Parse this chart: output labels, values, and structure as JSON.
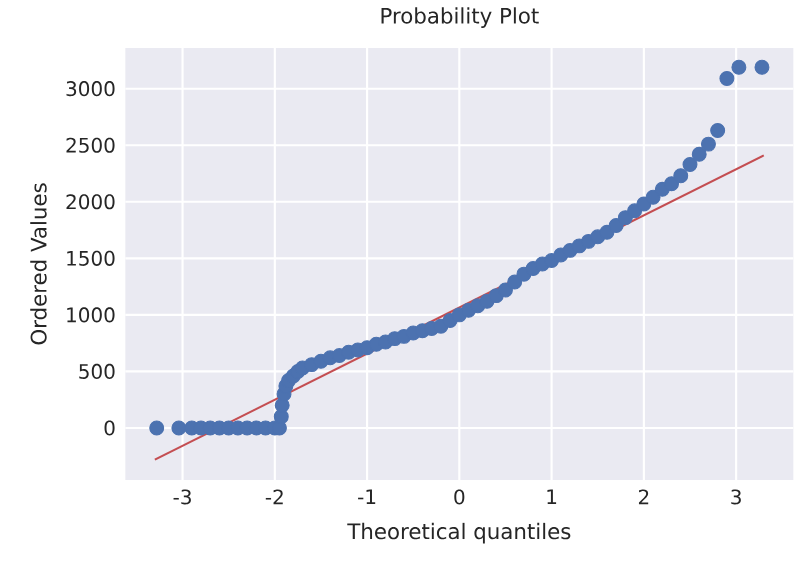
{
  "chart_data": {
    "type": "scatter",
    "title": "Probability Plot",
    "xlabel": "Theoretical quantiles",
    "ylabel": "Ordered Values",
    "xlim": [
      -3.62,
      3.62
    ],
    "ylim": [
      -460,
      3360
    ],
    "xticks": [
      -3,
      -2,
      -1,
      0,
      1,
      2,
      3
    ],
    "yticks": [
      0,
      500,
      1000,
      1500,
      2000,
      2500,
      3000
    ],
    "grid": true,
    "series": [
      {
        "marker": "circle",
        "color": "#4c72b0",
        "x": [
          -3.28,
          -3.04,
          -2.9,
          -2.8,
          -2.7,
          -2.6,
          -2.5,
          -2.4,
          -2.3,
          -2.2,
          -2.1,
          -2.0,
          -1.95,
          -1.93,
          -1.92,
          -1.9,
          -1.88,
          -1.85,
          -1.8,
          -1.75,
          -1.7,
          -1.6,
          -1.5,
          -1.4,
          -1.3,
          -1.2,
          -1.1,
          -1.0,
          -0.9,
          -0.8,
          -0.7,
          -0.6,
          -0.5,
          -0.4,
          -0.3,
          -0.2,
          -0.1,
          0,
          0.1,
          0.2,
          0.3,
          0.4,
          0.5,
          0.6,
          0.7,
          0.8,
          0.9,
          1.0,
          1.1,
          1.2,
          1.3,
          1.4,
          1.5,
          1.6,
          1.7,
          1.8,
          1.9,
          2.0,
          2.1,
          2.2,
          2.3,
          2.4,
          2.5,
          2.6,
          2.7,
          2.8,
          2.9,
          3.03,
          3.28
        ],
        "values": [
          0,
          0,
          0,
          0,
          0,
          0,
          0,
          0,
          0,
          0,
          0,
          0,
          0,
          100,
          200,
          300,
          370,
          420,
          460,
          500,
          530,
          560,
          590,
          620,
          640,
          670,
          690,
          710,
          740,
          760,
          790,
          810,
          840,
          860,
          880,
          900,
          950,
          1000,
          1040,
          1080,
          1120,
          1170,
          1220,
          1290,
          1360,
          1410,
          1450,
          1480,
          1530,
          1570,
          1610,
          1650,
          1690,
          1730,
          1790,
          1860,
          1920,
          1980,
          2040,
          2110,
          2160,
          2230,
          2330,
          2420,
          2510,
          2630,
          3090,
          3190,
          3190
        ]
      },
      {
        "type": "line",
        "marker": "none",
        "color": "#c44e52",
        "x": [
          -3.3,
          3.3
        ],
        "values": [
          -280,
          2410
        ]
      }
    ]
  }
}
